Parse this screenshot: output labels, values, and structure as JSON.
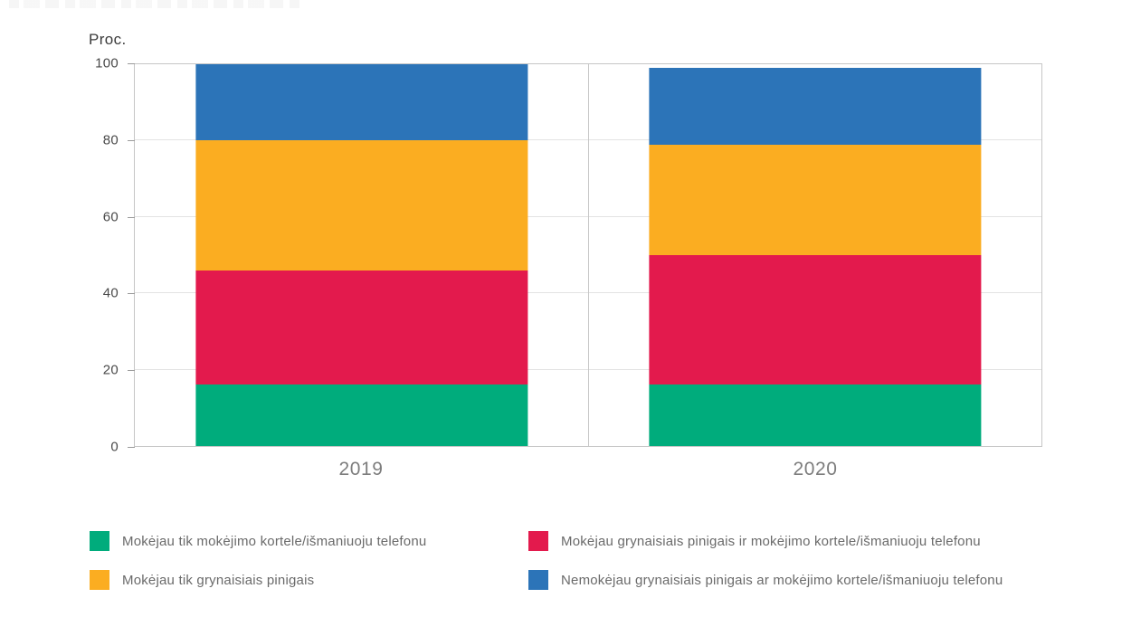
{
  "page": {
    "background": "#ffffff"
  },
  "chart_data": {
    "type": "bar",
    "stacked": true,
    "ylabel": "Proc.",
    "categories": [
      "2019",
      "2020"
    ],
    "series": [
      {
        "name": "Mokėjau tik mokėjimo kortele/išmaniuoju telefonu",
        "color": "#00AC7C",
        "values": [
          16,
          16
        ]
      },
      {
        "name": "Mokėjau grynaisiais pinigais ir mokėjimo kortele/išmaniuoju telefonu",
        "color": "#E31A4D",
        "values": [
          30,
          34
        ]
      },
      {
        "name": "Mokėjau tik grynaisiais pinigais",
        "color": "#FBAD21",
        "values": [
          34,
          29
        ]
      },
      {
        "name": "Nemokėjau grynaisiais pinigais ar mokėjimo kortele/išmaniuoju telefonu",
        "color": "#2C74B8",
        "values": [
          20,
          20
        ]
      }
    ],
    "totals": [
      100,
      99
    ],
    "ylim": [
      0,
      100
    ],
    "yticks": [
      0,
      20,
      40,
      60,
      80,
      100
    ],
    "grid": true,
    "legend_position": "bottom",
    "colors": {
      "axis_border": "#c6c6c6",
      "gridline": "#e3e3e3",
      "tick_label": "#4a4a4a",
      "x_label": "#7d7d7d",
      "legend_text": "#6a6a6a"
    }
  }
}
